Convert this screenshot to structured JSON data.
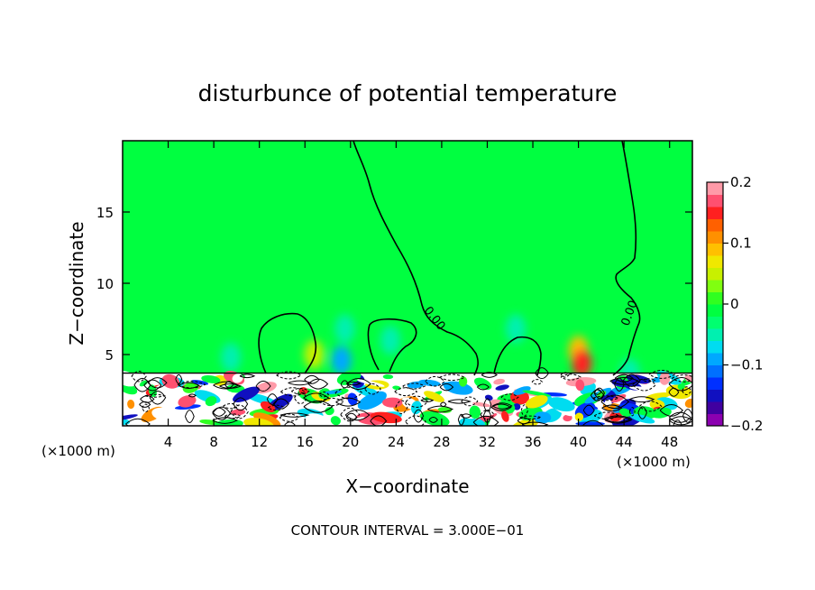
{
  "chart_data": {
    "type": "heatmap",
    "title": "disturbunce of potential temperature",
    "xlabel": "X−coordinate",
    "ylabel": "Z−coordinate",
    "x_unit_left": "(×1000 m)",
    "x_unit_right": "(×1000 m)",
    "footer": "CONTOUR INTERVAL = 3.000E−01",
    "xlim": [
      0,
      50
    ],
    "ylim": [
      0,
      20
    ],
    "x_ticks": [
      4,
      8,
      12,
      16,
      20,
      24,
      28,
      32,
      36,
      40,
      44,
      48
    ],
    "x_tick_labels": [
      "4",
      "8",
      "12",
      "16",
      "20",
      "24",
      "28",
      "32",
      "36",
      "40",
      "44",
      "48"
    ],
    "y_ticks": [
      5,
      10,
      15
    ],
    "y_tick_labels": [
      "5",
      "10",
      "15"
    ],
    "contour_labels": [
      {
        "text": "0.00",
        "x": 26.5,
        "z": 7.7
      },
      {
        "text": "0.00",
        "x": 44.3,
        "z": 5.7
      }
    ],
    "colorbar": {
      "min": -0.2,
      "max": 0.2,
      "tick_values": [
        0.2,
        0.1,
        0,
        -0.1,
        -0.2
      ],
      "tick_labels": [
        "0.2",
        "0.1",
        "0",
        "−0.1",
        "−0.2"
      ],
      "colors": [
        "#8b00b0",
        "#4000a0",
        "#1010c0",
        "#0030ff",
        "#0070ff",
        "#00a8ff",
        "#00dcf0",
        "#00f0b0",
        "#00ff70",
        "#00ff40",
        "#30ff20",
        "#80ff10",
        "#c8f000",
        "#f0e800",
        "#ffc000",
        "#ff9000",
        "#ff6000",
        "#ff2020",
        "#ff5070",
        "#ff9aa8"
      ]
    },
    "background_value": 0.0,
    "blobs": [
      {
        "x": 19.5,
        "z": 6.8,
        "value": -0.06
      },
      {
        "x": 19.2,
        "z": 4.6,
        "value": -0.1
      },
      {
        "x": 23.5,
        "z": 6.0,
        "value": -0.05
      },
      {
        "x": 34.5,
        "z": 6.8,
        "value": -0.05
      },
      {
        "x": 9.5,
        "z": 4.8,
        "value": -0.05
      },
      {
        "x": 40.0,
        "z": 5.3,
        "value": 0.09
      },
      {
        "x": 40.3,
        "z": 4.4,
        "value": 0.15
      },
      {
        "x": 16.8,
        "z": 5.0,
        "value": 0.04
      },
      {
        "x": 44.5,
        "z": 3.7,
        "value": -0.06
      }
    ],
    "turbulent_layer_top_z": 3.7
  }
}
